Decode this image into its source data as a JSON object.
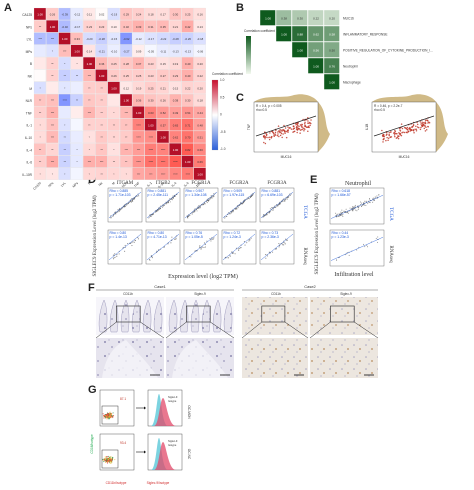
{
  "letters": [
    "A",
    "B",
    "C",
    "D",
    "E",
    "F",
    "G"
  ],
  "panelA": {
    "vars": [
      "CA125",
      "NPs",
      "LYL",
      "MPs",
      "B",
      "NK",
      "M",
      "NLR",
      "TNF",
      "IL-1",
      "IL-10",
      "IL-4",
      "IL-6",
      "IL-10R"
    ],
    "legend_title": "Correlation coefficient",
    "legend_ticks": [
      "1.0",
      "0.5",
      "0",
      "-0.5",
      "-1.0"
    ],
    "matrix": [
      [
        1.0,
        0.26,
        -0.39,
        -0.12,
        0.11,
        0.02,
        -0.19,
        0.29,
        0.24,
        0.18,
        0.17,
        0.3,
        0.25,
        0.16
      ],
      [
        0.26,
        1.0,
        -0.4,
        -0.17,
        0.23,
        0.23,
        0.1,
        0.32,
        0.39,
        0.31,
        0.35,
        0.21,
        0.42,
        0.13
      ],
      [
        -0.39,
        -0.4,
        1.0,
        0.33,
        -0.2,
        -0.28,
        -0.15,
        -0.62,
        -0.12,
        -0.17,
        -0.22,
        -0.28,
        -0.26,
        -0.18
      ],
      [
        -0.12,
        -0.17,
        0.33,
        1.0,
        0.14,
        -0.21,
        -0.1,
        -0.27,
        0.09,
        -0.05,
        -0.11,
        -0.13,
        -0.13,
        -0.06
      ],
      [
        0.11,
        0.23,
        -0.2,
        0.14,
        1.0,
        0.36,
        0.25,
        0.28,
        0.37,
        0.23,
        0.15,
        0.19,
        0.4,
        0.2
      ],
      [
        0.02,
        0.23,
        -0.28,
        -0.21,
        0.36,
        1.0,
        0.26,
        0.25,
        0.25,
        0.23,
        0.27,
        0.29,
        0.4,
        0.22
      ],
      [
        -0.19,
        0.1,
        -0.15,
        -0.1,
        0.25,
        0.26,
        1.0,
        0.12,
        0.19,
        0.25,
        0.21,
        0.15,
        0.22,
        0.2
      ],
      [
        0.29,
        0.32,
        -0.62,
        -0.27,
        0.28,
        0.25,
        0.12,
        1.0,
        0.36,
        0.3,
        0.26,
        0.38,
        0.3,
        0.18
      ],
      [
        0.24,
        0.39,
        -0.12,
        0.09,
        0.37,
        0.25,
        0.19,
        0.36,
        1.0,
        0.63,
        0.52,
        0.49,
        0.54,
        0.44
      ],
      [
        0.18,
        0.31,
        -0.17,
        -0.05,
        0.23,
        0.23,
        0.25,
        0.3,
        0.63,
        1.0,
        0.57,
        0.65,
        0.71,
        0.48
      ],
      [
        0.17,
        0.35,
        -0.22,
        -0.11,
        0.15,
        0.27,
        0.21,
        0.26,
        0.52,
        0.57,
        1.0,
        0.62,
        0.7,
        0.51
      ],
      [
        0.3,
        0.21,
        -0.28,
        -0.13,
        0.19,
        0.29,
        0.15,
        0.38,
        0.49,
        0.65,
        0.62,
        1.0,
        0.82,
        0.6
      ],
      [
        0.25,
        0.42,
        -0.26,
        -0.13,
        0.4,
        0.4,
        0.22,
        0.3,
        0.54,
        0.71,
        0.7,
        0.82,
        1.0,
        0.66
      ],
      [
        0.16,
        0.13,
        -0.18,
        -0.06,
        0.2,
        0.22,
        0.2,
        0.18,
        0.44,
        0.48,
        0.51,
        0.6,
        0.66,
        1.0
      ]
    ]
  },
  "panelB": {
    "row_labels": [
      "MUC16",
      "INFLAMMATORY_RESPONSE",
      "POSITIVE_REGULATION_OF_CYTOKINE_PRODUCTION_INVOLVED_IN_INFLAMMATORY_RESPONSE",
      "Neutrophil",
      "Macrophage"
    ],
    "legend_title": "Correlation coefficient",
    "matrix": [
      [
        1.0,
        0.38,
        0.3,
        0.22,
        0.2
      ],
      [
        0.38,
        1.0,
        0.88,
        0.62,
        0.58
      ],
      [
        0.3,
        0.88,
        1.0,
        0.56,
        0.5
      ],
      [
        0.22,
        0.62,
        0.56,
        1.0,
        0.76
      ],
      [
        0.2,
        0.58,
        0.5,
        0.76,
        1.0
      ]
    ]
  },
  "panelC": {
    "plots": [
      {
        "ylabel": "TNF",
        "xlabel": "MUC16",
        "stat1": "R = 0.4, p = 0.005",
        "stat2": "rho=0.5"
      },
      {
        "ylabel": "IL1B",
        "xlabel": "MUC16",
        "stat1": "R = 0.46, p = 2.2e-7",
        "stat2": "rho=0.5"
      }
    ]
  },
  "panelD": {
    "genes": [
      "ITGAM",
      "ITGB2",
      "FCGR1A",
      "FCGR2A",
      "FCGR3A"
    ],
    "ylabel": "SIGLEC9 Expression Level (log2 TPM)",
    "xlabel": "Expression level (log2 TPM)",
    "side_top": "TCGA",
    "side_bottom": "RNAseq",
    "top_stats": [
      [
        "Rho = 0.885",
        "p = 1.71e-103"
      ],
      [
        "Rho = 0.881",
        "p = 2.45e-111"
      ],
      [
        "Rho = 0.907",
        "p = 1.34e-108"
      ],
      [
        "Rho = 0.909",
        "p = 1.97e-115"
      ],
      [
        "Rho = 0.881",
        "p = 6.69e-103"
      ]
    ],
    "bottom_stats": [
      [
        "Rho = 0.80",
        "p = 1.4e-13"
      ],
      [
        "Rho = 0.80",
        "p = 4.71e-13"
      ],
      [
        "Rho = 0.76",
        "p = 1.05e-5"
      ],
      [
        "Rho = 0.72",
        "p = 1.24e-3"
      ],
      [
        "Rho = 0.73",
        "p = 2.36e-3"
      ]
    ]
  },
  "panelE": {
    "title": "Neutrophil",
    "ylabel": "SIGLEC9 Expression Level (log2 TPM)",
    "xlabel": "Infiltration level",
    "side_top": "TCGA",
    "side_bottom": "RNAseq",
    "top_stats": [
      "Rho = 0.618",
      "p = 1.66e-57"
    ],
    "bottom_stats": [
      "Rho = 0.44",
      "p = 1.23e-3"
    ]
  },
  "panelF": {
    "case1": "Case1",
    "case2": "Case2",
    "stains": [
      "CD11b",
      "Siglec-9",
      "CD11b",
      "Siglec-9"
    ]
  },
  "panelG": {
    "gates": [
      "87.1",
      "93.4"
    ],
    "row_labels": [
      "OC-MON",
      "OC-NC"
    ],
    "ylabel": "CD16/Isotype",
    "xlabel": "CD11b/Isotype",
    "hist_xlabel": "Siglec-9/Isotype",
    "hist_labels": [
      "Siglec-9",
      "Isotype"
    ],
    "colors": {
      "siglec": "#e24a6a",
      "isotype": "#5bc8d8"
    }
  },
  "colors": {
    "pos": "#c8102e",
    "neg": "#2b5fd9",
    "green": "#1a7a2c",
    "dot": "#c0392b",
    "blob": "#c8ae72"
  }
}
